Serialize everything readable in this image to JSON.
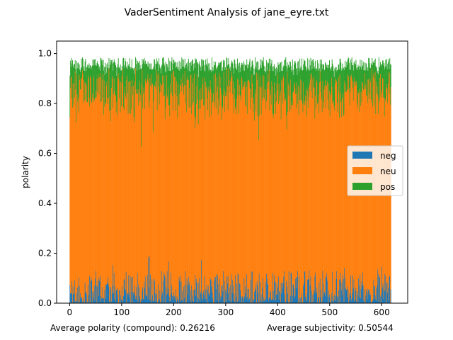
{
  "chart_data": {
    "type": "bar",
    "stacked": true,
    "title": "VaderSentiment Analysis of jane_eyre.txt",
    "xlabel": "",
    "ylabel": "polarity",
    "xlim": [
      -25,
      650
    ],
    "ylim": [
      0.0,
      1.05
    ],
    "xticks": [
      0,
      100,
      200,
      300,
      400,
      500,
      600
    ],
    "yticks": [
      0.0,
      0.2,
      0.4,
      0.6,
      0.8,
      1.0
    ],
    "n_points": 618,
    "grid": false,
    "legend_position": "center-right",
    "series": [
      {
        "name": "neg",
        "color": "#1f77b4",
        "typical_range": [
          0.0,
          0.15
        ],
        "max": 0.23
      },
      {
        "name": "neu",
        "color": "#ff7f0e",
        "typical_top_range": [
          0.8,
          0.9
        ],
        "min_top": 0.59
      },
      {
        "name": "pos",
        "color": "#2ca02c",
        "typical_top_range": [
          0.9,
          0.97
        ],
        "max_top": 0.99
      }
    ],
    "notes_bottom": {
      "left": "Average polarity (compound): 0.26216",
      "right": "Average subjectivity: 0.50544"
    }
  }
}
